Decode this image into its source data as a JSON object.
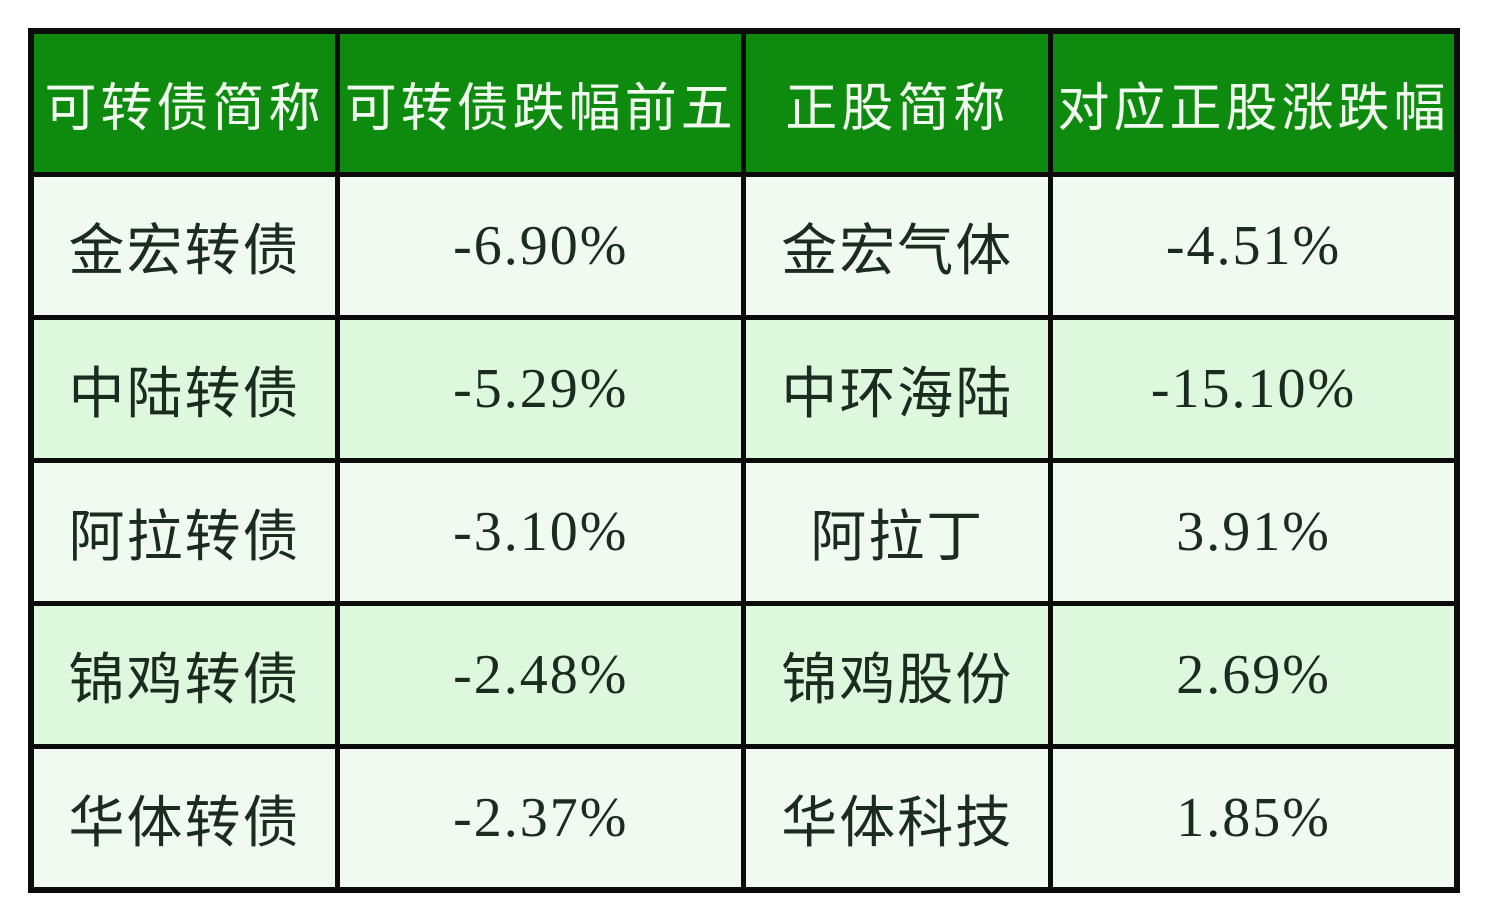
{
  "chart_data": {
    "type": "table",
    "columns": [
      "可转债简称",
      "可转债跌幅前五",
      "正股简称",
      "对应正股涨跌幅"
    ],
    "rows": [
      [
        "金宏转债",
        "-6.90%",
        "金宏气体",
        "-4.51%"
      ],
      [
        "中陆转债",
        "-5.29%",
        "中环海陆",
        "-15.10%"
      ],
      [
        "阿拉转债",
        "-3.10%",
        "阿拉丁",
        "3.91%"
      ],
      [
        "锦鸡转债",
        "-2.48%",
        "锦鸡股份",
        "2.69%"
      ],
      [
        "华体转债",
        "-2.37%",
        "华体科技",
        "1.85%"
      ]
    ],
    "title": "",
    "layout_hints": {
      "header_row": true,
      "alternating_row_shading": true,
      "grid": true,
      "cell_alignment": "center"
    }
  },
  "colors": {
    "header_bg": "#0e8b0e",
    "header_text": "#f2fcf0",
    "row_odd_bg": "#f0faf0",
    "row_even_bg": "#ddf8dd",
    "body_text": "#1c2b20",
    "border": "#0b0b0b",
    "page_bg": "#ffffff"
  }
}
